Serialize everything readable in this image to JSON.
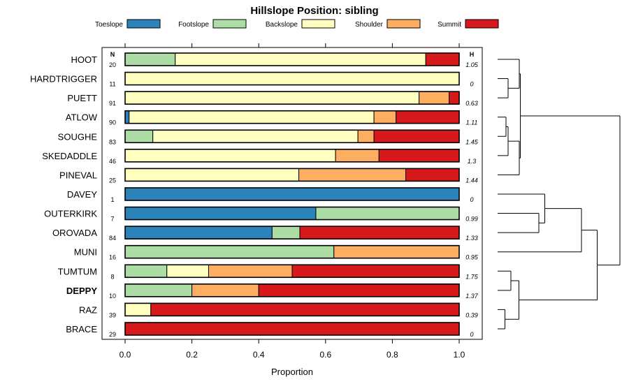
{
  "chart_data": {
    "type": "stacked-bar",
    "title": "Hillslope Position: sibling",
    "xlabel": "Proportion",
    "xlim": [
      0,
      1
    ],
    "xticks": [
      "0.0",
      "0.2",
      "0.4",
      "0.6",
      "0.8",
      "1.0"
    ],
    "n_header": "N",
    "h_header": "H",
    "legend": [
      {
        "name": "Toeslope",
        "color": "#2b83ba"
      },
      {
        "name": "Footslope",
        "color": "#abdda4"
      },
      {
        "name": "Backslope",
        "color": "#ffffbf"
      },
      {
        "name": "Shoulder",
        "color": "#fdae61"
      },
      {
        "name": "Summit",
        "color": "#d7191c"
      }
    ],
    "rows": [
      {
        "name": "HOOT",
        "n": "20",
        "h": "1.05",
        "bold": false,
        "values": [
          0,
          0.15,
          0.75,
          0,
          0.1
        ]
      },
      {
        "name": "HARDTRIGGER",
        "n": "11",
        "h": "0",
        "bold": false,
        "values": [
          0,
          0,
          1.0,
          0,
          0
        ]
      },
      {
        "name": "PUETT",
        "n": "91",
        "h": "0.63",
        "bold": false,
        "values": [
          0,
          0,
          0.88,
          0.09,
          0.03
        ]
      },
      {
        "name": "ATLOW",
        "n": "90",
        "h": "1.11",
        "bold": false,
        "values": [
          0.012,
          0,
          0.733,
          0.066,
          0.189
        ]
      },
      {
        "name": "SOUGHE",
        "n": "83",
        "h": "1.45",
        "bold": false,
        "values": [
          0,
          0.083,
          0.614,
          0.048,
          0.255
        ]
      },
      {
        "name": "SKEDADDLE",
        "n": "46",
        "h": "1.3",
        "bold": false,
        "values": [
          0,
          0,
          0.63,
          0.13,
          0.24
        ]
      },
      {
        "name": "PINEVAL",
        "n": "25",
        "h": "1.44",
        "bold": false,
        "values": [
          0,
          0,
          0.52,
          0.32,
          0.16
        ]
      },
      {
        "name": "DAVEY",
        "n": "1",
        "h": "0",
        "bold": false,
        "values": [
          1.0,
          0,
          0,
          0,
          0
        ]
      },
      {
        "name": "OUTERKIRK",
        "n": "7",
        "h": "0.99",
        "bold": false,
        "values": [
          0.571,
          0.429,
          0,
          0,
          0
        ]
      },
      {
        "name": "OROVADA",
        "n": "84",
        "h": "1.33",
        "bold": false,
        "values": [
          0.44,
          0.083,
          0,
          0,
          0.477
        ]
      },
      {
        "name": "MUNI",
        "n": "16",
        "h": "0.95",
        "bold": false,
        "values": [
          0,
          0.625,
          0,
          0.375,
          0
        ]
      },
      {
        "name": "TUMTUM",
        "n": "8",
        "h": "1.75",
        "bold": false,
        "values": [
          0,
          0.125,
          0.125,
          0.25,
          0.5
        ]
      },
      {
        "name": "DEPPY",
        "n": "10",
        "h": "1.37",
        "bold": true,
        "values": [
          0,
          0.2,
          0,
          0.2,
          0.6
        ]
      },
      {
        "name": "RAZ",
        "n": "39",
        "h": "0.39",
        "bold": false,
        "values": [
          0,
          0,
          0.077,
          0,
          0.923
        ]
      },
      {
        "name": "BRACE",
        "n": "29",
        "h": "0",
        "bold": false,
        "values": [
          0,
          0,
          0,
          0,
          1.0
        ]
      }
    ],
    "dendrogram": {
      "leaves": [
        "HOOT",
        "HARDTRIGGER",
        "PUETT",
        "ATLOW",
        "SOUGHE",
        "SKEDADDLE",
        "PINEVAL",
        "DAVEY",
        "OUTERKIRK",
        "OROVADA",
        "MUNI",
        "TUMTUM",
        "DEPPY",
        "RAZ",
        "BRACE"
      ],
      "merges": [
        {
          "a": 1,
          "b": 2,
          "h": 0.3
        },
        {
          "a": 0,
          "b": -1,
          "h": 0.62
        },
        {
          "a": 3,
          "b": 4,
          "h": 0.24
        },
        {
          "a": -3,
          "b": 5,
          "h": 0.3
        },
        {
          "a": -4,
          "b": 6,
          "h": 0.62
        },
        {
          "a": -2,
          "b": -5,
          "h": 0.65
        },
        {
          "a": 8,
          "b": 9,
          "h": 1.18
        },
        {
          "a": 7,
          "b": -7,
          "h": 1.35
        },
        {
          "a": -8,
          "b": 10,
          "h": 2.4
        },
        {
          "a": 11,
          "b": 12,
          "h": 0.38
        },
        {
          "a": 13,
          "b": 14,
          "h": 0.21
        },
        {
          "a": -10,
          "b": -11,
          "h": 0.61
        },
        {
          "a": -9,
          "b": -12,
          "h": 2.85
        },
        {
          "a": -6,
          "b": -13,
          "h": 3.5
        }
      ],
      "max_height": 3.6
    }
  }
}
